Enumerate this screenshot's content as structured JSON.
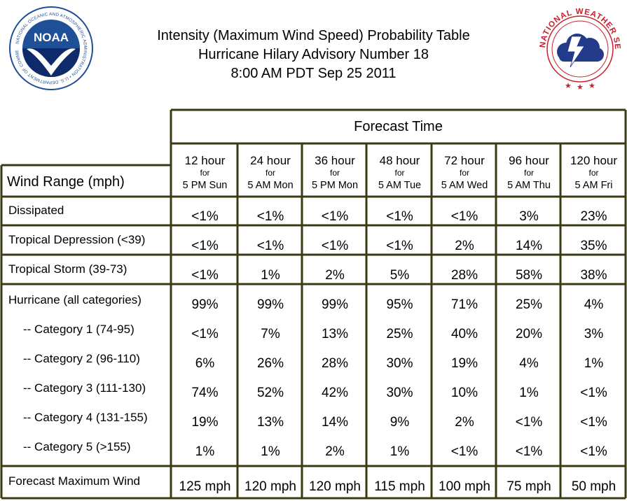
{
  "header": {
    "title_lines": [
      "Intensity (Maximum Wind Speed) Probability Table",
      "Hurricane Hilary Advisory Number 18",
      "8:00 AM PDT Sep 25 2011"
    ],
    "noaa_logo": {
      "icon": "noaa-logo",
      "center_text": "NOAA",
      "ring_text": "NATIONAL OCEANIC AND ATMOSPHERIC ADMINISTRATION • U.S. DEPARTMENT OF COMMERCE"
    },
    "nws_logo": {
      "icon": "nws-logo",
      "ring_text": "NATIONAL WEATHER SERVICE"
    }
  },
  "table": {
    "group_header": "Forecast Time",
    "corner_label": "Wind Range (mph)",
    "columns": [
      {
        "hour": "12 hour",
        "for": "for",
        "time": "5 PM Sun"
      },
      {
        "hour": "24 hour",
        "for": "for",
        "time": "5 AM Mon"
      },
      {
        "hour": "36 hour",
        "for": "for",
        "time": "5 PM Mon"
      },
      {
        "hour": "48 hour",
        "for": "for",
        "time": "5 AM Tue"
      },
      {
        "hour": "72 hour",
        "for": "for",
        "time": "5 AM Wed"
      },
      {
        "hour": "96 hour",
        "for": "for",
        "time": "5 AM Thu"
      },
      {
        "hour": "120 hour",
        "for": "for",
        "time": "5 AM Fri"
      }
    ],
    "rows": [
      {
        "label": "Dissipated",
        "values": [
          "<1%",
          "<1%",
          "<1%",
          "<1%",
          "<1%",
          "3%",
          "23%"
        ]
      },
      {
        "label": "Tropical Depression (<39)",
        "values": [
          "<1%",
          "<1%",
          "<1%",
          "<1%",
          "2%",
          "14%",
          "35%"
        ]
      },
      {
        "label": "Tropical Storm (39-73)",
        "values": [
          "<1%",
          "1%",
          "2%",
          "5%",
          "28%",
          "58%",
          "38%"
        ]
      },
      {
        "label": "Hurricane (all categories)",
        "values": [
          "99%",
          "99%",
          "99%",
          "95%",
          "71%",
          "25%",
          "4%"
        ]
      },
      {
        "label": "-- Category 1 (74-95)",
        "values": [
          "<1%",
          "7%",
          "13%",
          "25%",
          "40%",
          "20%",
          "3%"
        ]
      },
      {
        "label": "-- Category 2 (96-110)",
        "values": [
          "6%",
          "26%",
          "28%",
          "30%",
          "19%",
          "4%",
          "1%"
        ]
      },
      {
        "label": "-- Category 3 (111-130)",
        "values": [
          "74%",
          "52%",
          "42%",
          "30%",
          "10%",
          "1%",
          "<1%"
        ]
      },
      {
        "label": "-- Category 4 (131-155)",
        "values": [
          "19%",
          "13%",
          "14%",
          "9%",
          "2%",
          "<1%",
          "<1%"
        ]
      },
      {
        "label": "-- Category 5 (>155)",
        "values": [
          "1%",
          "1%",
          "2%",
          "1%",
          "<1%",
          "<1%",
          "<1%"
        ]
      },
      {
        "label": "Forecast Maximum Wind",
        "values": [
          "125 mph",
          "120 mph",
          "120 mph",
          "115 mph",
          "100 mph",
          "75 mph",
          "50 mph"
        ]
      }
    ]
  },
  "colors": {
    "border": "#3b3a12",
    "noaa_blue": "#1f4f96",
    "noaa_dark": "#0f2a6b",
    "nws_red": "#c8202e",
    "nws_cloud": "#243a8a"
  }
}
